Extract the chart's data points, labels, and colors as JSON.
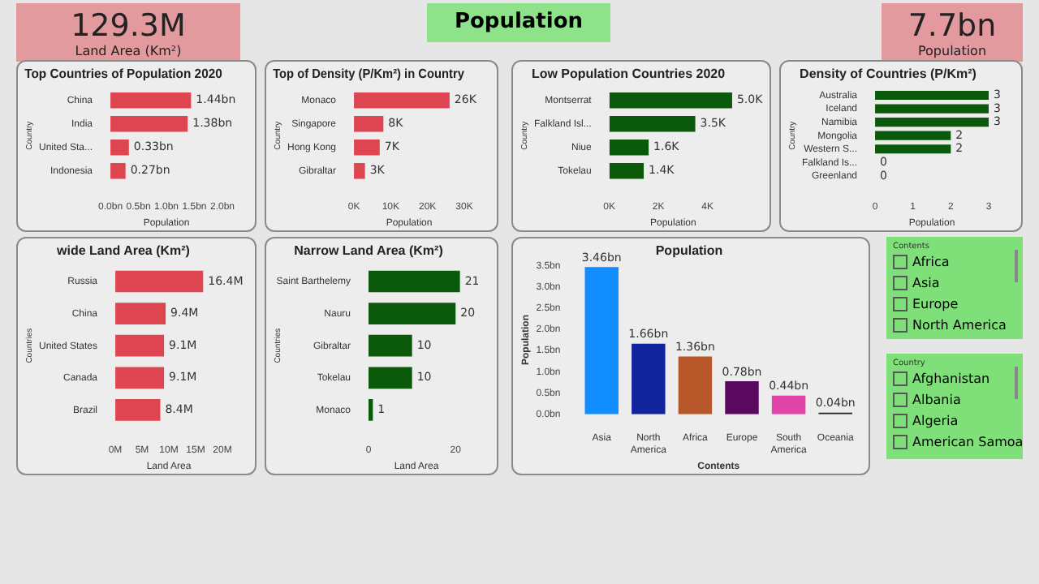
{
  "chart_data": [
    {
      "type": "other",
      "title": "129.3M",
      "subtitle": "Land Area (Km²)"
    },
    {
      "type": "other",
      "title": "Population"
    },
    {
      "type": "other",
      "title": "7.7bn",
      "subtitle": "Population"
    },
    {
      "type": "bar",
      "orientation": "horizontal",
      "title": "Top Countries of Population 2020",
      "xlabel": "Population",
      "ylabel": "Country",
      "categories": [
        "China",
        "India",
        "United Sta...",
        "Indonesia"
      ],
      "values": [
        1.44,
        1.38,
        0.33,
        0.27
      ],
      "color": "#dd4550",
      "value_labels": [
        "1.44bn",
        "1.38bn",
        "0.33bn",
        "0.27bn"
      ],
      "xlim": [
        0,
        2
      ],
      "xticks": [
        {
          "value": 0,
          "label": "0.0bn"
        },
        {
          "value": 0.5,
          "label": "0.5bn"
        },
        {
          "value": 1,
          "label": "1.0bn"
        },
        {
          "value": 1.5,
          "label": "1.5bn"
        },
        {
          "value": 2,
          "label": "2.0bn"
        }
      ]
    },
    {
      "type": "bar",
      "orientation": "horizontal",
      "title": "Top of Density (P/Km²) in Country",
      "xlabel": "Population",
      "ylabel": "Country",
      "categories": [
        "Monaco",
        "Singapore",
        "Hong Kong",
        "Gibraltar"
      ],
      "values": [
        26,
        8,
        7,
        3
      ],
      "color": "#dd4550",
      "value_labels": [
        "26K",
        "8K",
        "7K",
        "3K"
      ],
      "xlim": [
        0,
        30
      ],
      "xticks": [
        {
          "value": 0,
          "label": "0K"
        },
        {
          "value": 10,
          "label": "10K"
        },
        {
          "value": 20,
          "label": "20K"
        },
        {
          "value": 30,
          "label": "30K"
        }
      ]
    },
    {
      "type": "bar",
      "orientation": "horizontal",
      "title": "Low Population Countries 2020",
      "xlabel": "Population",
      "ylabel": "Country",
      "categories": [
        "Montserrat",
        "Falkland Isl...",
        "Niue",
        "Tokelau"
      ],
      "values": [
        5.0,
        3.5,
        1.6,
        1.4
      ],
      "color": "#0b5a0b",
      "value_labels": [
        "5.0K",
        "3.5K",
        "1.6K",
        "1.4K"
      ],
      "xlim": [
        0,
        5.2
      ],
      "xticks": [
        {
          "value": 0,
          "label": "0K"
        },
        {
          "value": 2,
          "label": "2K"
        },
        {
          "value": 4,
          "label": "4K"
        }
      ]
    },
    {
      "type": "bar",
      "orientation": "horizontal",
      "title": "Density of Countries (P/Km²)",
      "xlabel": "Population",
      "ylabel": "Country",
      "categories": [
        "Australia",
        "Iceland",
        "Namibia",
        "Mongolia",
        "Western S...",
        "Falkland Is...",
        "Greenland"
      ],
      "values": [
        3,
        3,
        3,
        2,
        2,
        0,
        0
      ],
      "color": "#0b5a0b",
      "data_labels": true,
      "xlim": [
        0,
        3
      ],
      "xticks": [
        0,
        1,
        2,
        3
      ]
    },
    {
      "type": "bar",
      "orientation": "horizontal",
      "title": "wide Land Area (Km²)",
      "xlabel": "Land Area",
      "ylabel": "Countries",
      "categories": [
        "Russia",
        "China",
        "United States",
        "Canada",
        "Brazil"
      ],
      "values": [
        16.4,
        9.4,
        9.1,
        9.1,
        8.4
      ],
      "color": "#dd4550",
      "value_labels": [
        "16.4M",
        "9.4M",
        "9.1M",
        "9.1M",
        "8.4M"
      ],
      "xlim": [
        0,
        20
      ],
      "xticks": [
        {
          "value": 0,
          "label": "0M"
        },
        {
          "value": 5,
          "label": "5M"
        },
        {
          "value": 10,
          "label": "10M"
        },
        {
          "value": 15,
          "label": "15M"
        },
        {
          "value": 20,
          "label": "20M"
        }
      ]
    },
    {
      "type": "bar",
      "orientation": "horizontal",
      "title": "Narrow Land Area (Km²)",
      "xlabel": "Land Area",
      "ylabel": "Countries",
      "categories": [
        "Saint Barthelemy",
        "Nauru",
        "Gibraltar",
        "Tokelau",
        "Monaco"
      ],
      "values": [
        21,
        20,
        10,
        10,
        1
      ],
      "color": "#0b5a0b",
      "data_labels": true,
      "xlim": [
        0,
        22
      ],
      "xticks": [
        0,
        20
      ]
    },
    {
      "type": "bar",
      "title": "Population",
      "xlabel": "Contents",
      "ylabel": "Population",
      "categories": [
        "Asia",
        "North America",
        "Africa",
        "Europe",
        "South America",
        "Oceania"
      ],
      "values": [
        3.46,
        1.66,
        1.36,
        0.78,
        0.44,
        0.04
      ],
      "colors": [
        "#118dff",
        "#12239e",
        "#b8582a",
        "#5a0a5e",
        "#e044a7",
        "#222222"
      ],
      "value_labels": [
        "3.46bn",
        "1.66bn",
        "1.36bn",
        "0.78bn",
        "0.44bn",
        "0.04bn"
      ],
      "ylim": [
        0,
        3.5
      ],
      "yticks": [
        {
          "value": 0,
          "label": "0.0bn"
        },
        {
          "value": 0.5,
          "label": "0.5bn"
        },
        {
          "value": 1,
          "label": "1.0bn"
        },
        {
          "value": 1.5,
          "label": "1.5bn"
        },
        {
          "value": 2,
          "label": "2.0bn"
        },
        {
          "value": 2.5,
          "label": "2.5bn"
        },
        {
          "value": 3,
          "label": "3.0bn"
        },
        {
          "value": 3.5,
          "label": "3.5bn"
        }
      ]
    },
    {
      "type": "other",
      "title": "Contents",
      "annotations": [
        "Africa",
        "Asia",
        "Europe",
        "North America"
      ]
    },
    {
      "type": "other",
      "title": "Country",
      "annotations": [
        "Afghanistan",
        "Albania",
        "Algeria",
        "American Samoa"
      ]
    }
  ]
}
